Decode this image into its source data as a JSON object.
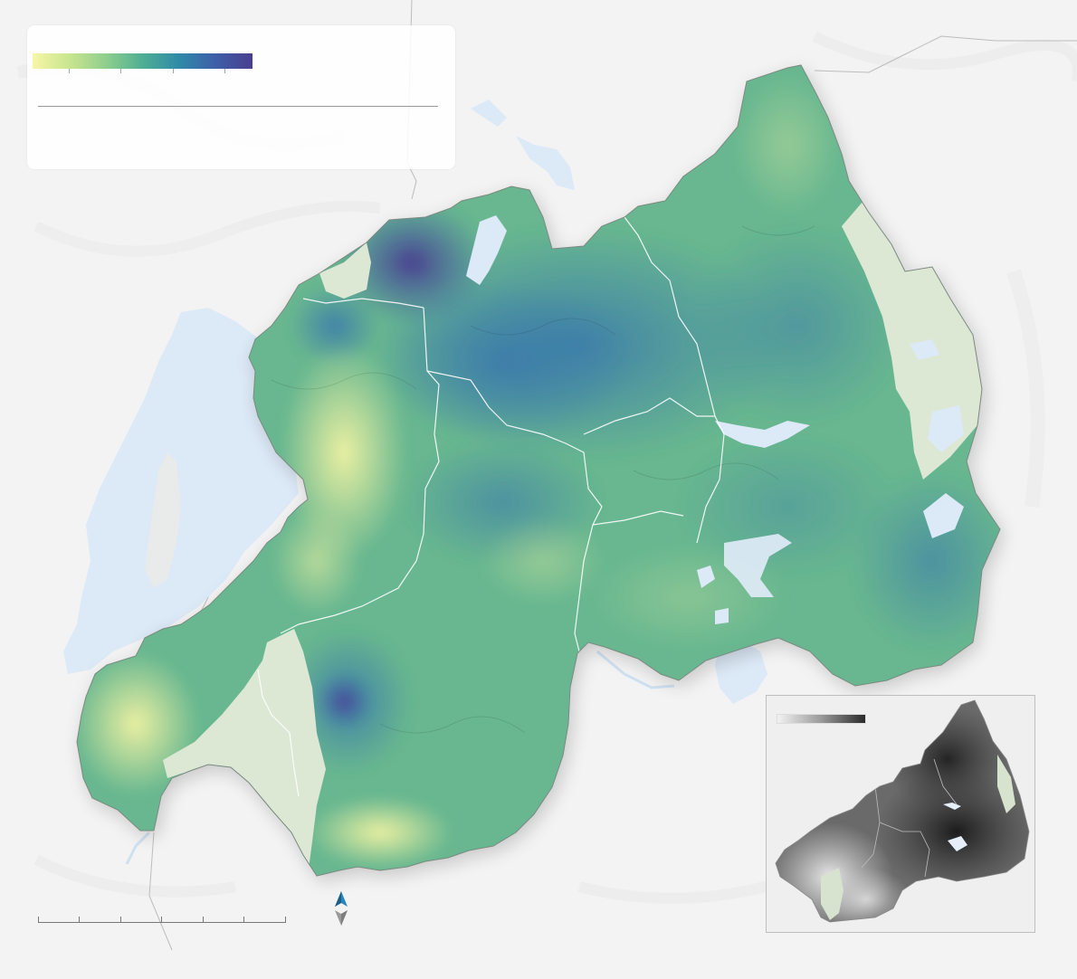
{
  "map": {
    "background_color": "#f3f3f3",
    "water_color": "#dce9f6",
    "protected_area_color": "#dde8d4",
    "boundary_color": "#ffffff",
    "palette": [
      "#f7f6a8",
      "#c9e58f",
      "#8fcf8d",
      "#4fae94",
      "#2f8aa8",
      "#3e5ea8",
      "#4a3f8f"
    ]
  },
  "legend": {
    "title": "",
    "tick_labels": [
      "",
      "",
      "",
      "",
      ""
    ],
    "note": ""
  },
  "inset": {
    "title": "",
    "ramp_colors": [
      "#f2f2f2",
      "#9a9a9a",
      "#2a2a2a"
    ]
  },
  "scale_bar": {
    "labels": []
  },
  "north_arrow": {
    "icon": "north-arrow-icon",
    "label": ""
  }
}
